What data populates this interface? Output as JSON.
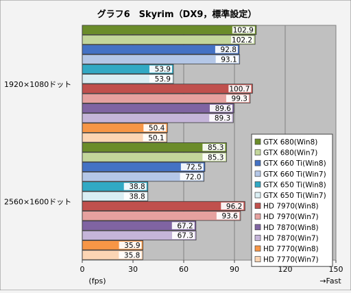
{
  "chart_data": {
    "type": "bar",
    "orientation": "horizontal",
    "title": "グラフ6　Skyrim（DX9，標準設定）",
    "xlabel": "(fps)",
    "xlabel_right": "→Fast",
    "xlim": [
      0,
      150
    ],
    "xticks": [
      "0",
      "30",
      "60",
      "90",
      "120",
      "150"
    ],
    "grid": true,
    "legend_position": "right-bottom",
    "categories": [
      "1920×1080ドット",
      "2560×1600ドット"
    ],
    "series": [
      {
        "name": "GTX 680(Win8)",
        "color": "#6b8c2a",
        "values": [
          102.9,
          85.3
        ],
        "labels": [
          "102.9",
          "85.3"
        ]
      },
      {
        "name": "GTX 680(Win7)",
        "color": "#c3d69b",
        "values": [
          102.2,
          85.3
        ],
        "labels": [
          "102.2",
          "85.3"
        ]
      },
      {
        "name": "GTX 660 Ti(Win8)",
        "color": "#4472c4",
        "values": [
          92.8,
          72.5
        ],
        "labels": [
          "92.8",
          "72.5"
        ]
      },
      {
        "name": "GTX 660 Ti(Win7)",
        "color": "#b4c7e7",
        "values": [
          93.1,
          72.0
        ],
        "labels": [
          "93.1",
          "72.0"
        ]
      },
      {
        "name": "GTX 650 Ti(Win8)",
        "color": "#31a9c4",
        "values": [
          53.9,
          38.8
        ],
        "labels": [
          "53.9",
          "38.8"
        ]
      },
      {
        "name": "GTX 650 Ti(Win7)",
        "color": "#daeef3",
        "values": [
          53.9,
          38.8
        ],
        "labels": [
          "53.9",
          "38.8"
        ]
      },
      {
        "name": "HD 7970(Win8)",
        "color": "#c0504d",
        "values": [
          100.7,
          96.2
        ],
        "labels": [
          "100.7",
          "96.2"
        ]
      },
      {
        "name": "HD 7970(Win7)",
        "color": "#e6a19f",
        "values": [
          99.3,
          93.6
        ],
        "labels": [
          "99.3",
          "93.6"
        ]
      },
      {
        "name": "HD 7870(Win8)",
        "color": "#8064a2",
        "values": [
          89.6,
          67.2
        ],
        "labels": [
          "89.6",
          "67.2"
        ]
      },
      {
        "name": "HD 7870(Win7)",
        "color": "#c5b5d9",
        "values": [
          89.3,
          67.3
        ],
        "labels": [
          "89.3",
          "67.3"
        ]
      },
      {
        "name": "HD 7770(Win8)",
        "color": "#f79646",
        "values": [
          50.4,
          35.9
        ],
        "labels": [
          "50.4",
          "35.9"
        ]
      },
      {
        "name": "HD 7770(Win7)",
        "color": "#fcd5b4",
        "values": [
          50.1,
          35.8
        ],
        "labels": [
          "50.1",
          "35.8"
        ]
      }
    ]
  }
}
